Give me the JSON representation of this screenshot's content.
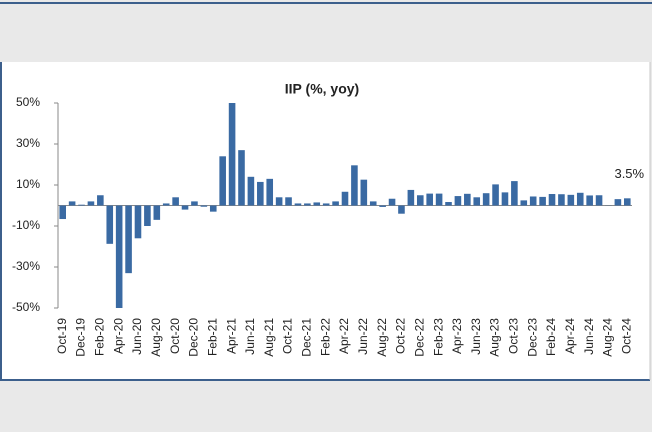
{
  "chart_data": {
    "type": "bar",
    "title": "IIP (%, yoy)",
    "categories": [
      "Oct-19",
      null,
      "Dec-19",
      null,
      "Feb-20",
      null,
      "Apr-20",
      null,
      "Jun-20",
      null,
      "Aug-20",
      null,
      "Oct-20",
      null,
      "Dec-20",
      null,
      "Feb-21",
      null,
      "Apr-21",
      null,
      "Jun-21",
      null,
      "Aug-21",
      null,
      "Oct-21",
      null,
      "Dec-21",
      null,
      "Feb-22",
      null,
      "Apr-22",
      null,
      "Jun-22",
      null,
      "Aug-22",
      null,
      "Oct-22",
      null,
      "Dec-22",
      null,
      "Feb-23",
      null,
      "Apr-23",
      null,
      "Jun-23",
      null,
      "Aug-23",
      null,
      "Oct-23",
      null,
      "Dec-23",
      null,
      "Feb-24",
      null,
      "Apr-24",
      null,
      "Jun-24",
      null,
      "Aug-24",
      null,
      "Oct-24"
    ],
    "values": [
      -6.6,
      2,
      0.4,
      2,
      5,
      -18.7,
      -50,
      -33,
      -16,
      -10,
      -7,
      1,
      4,
      -2,
      2,
      -0.6,
      -3,
      24,
      50,
      27,
      14,
      11.5,
      13,
      4,
      4,
      1,
      1,
      1.5,
      1,
      2,
      6.7,
      19.6,
      12.6,
      2,
      -0.7,
      3.3,
      -4,
      7.6,
      5,
      5.8,
      5.8,
      1.7,
      4.6,
      5.7,
      4,
      6,
      10.3,
      6.4,
      11.9,
      2.5,
      4.4,
      4.2,
      5.6,
      5.5,
      5.2,
      6.2,
      4.9,
      5,
      -0.1,
      3.1,
      3.5
    ],
    "value_labels": [
      null,
      null,
      null,
      null,
      null,
      null,
      null,
      null,
      null,
      null,
      null,
      null,
      null,
      null,
      null,
      null,
      null,
      null,
      null,
      null,
      null,
      null,
      null,
      null,
      null,
      null,
      null,
      null,
      null,
      null,
      null,
      null,
      null,
      null,
      null,
      null,
      null,
      null,
      null,
      null,
      null,
      null,
      null,
      null,
      null,
      null,
      null,
      null,
      null,
      null,
      null,
      null,
      null,
      null,
      null,
      null,
      null,
      null,
      null,
      null,
      "3.5%"
    ],
    "color": "#3a6aa3",
    "ylim": [
      -50,
      50
    ],
    "yticks": [
      {
        "value": 50,
        "label": "50%"
      },
      {
        "value": 30,
        "label": "30%"
      },
      {
        "value": 10,
        "label": "10%"
      },
      {
        "value": -10,
        "label": "-10%"
      },
      {
        "value": -30,
        "label": "-30%"
      },
      {
        "value": -50,
        "label": "-50%"
      }
    ],
    "grid": false
  }
}
